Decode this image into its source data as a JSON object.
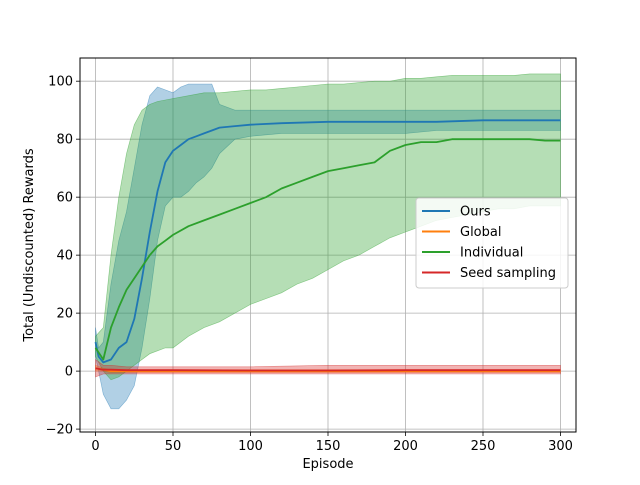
{
  "chart_data": {
    "type": "line",
    "title": "",
    "xlabel": "Episode",
    "ylabel": "Total (Undiscounted) Rewards",
    "xlim": [
      -10,
      310
    ],
    "ylim": [
      -21,
      108
    ],
    "xticks": [
      0,
      50,
      100,
      150,
      200,
      250,
      300
    ],
    "xtick_labels": [
      "0",
      "50",
      "100",
      "150",
      "200",
      "250",
      "300"
    ],
    "yticks": [
      -20,
      0,
      20,
      40,
      60,
      80,
      100
    ],
    "ytick_labels": [
      "−20",
      "0",
      "20",
      "40",
      "60",
      "80",
      "100"
    ],
    "grid": true,
    "legend_position": "center-right",
    "series": [
      {
        "name": "Ours",
        "color": "#1f77b4",
        "x": [
          0,
          2,
          5,
          10,
          15,
          20,
          25,
          30,
          35,
          40,
          45,
          50,
          55,
          60,
          65,
          70,
          75,
          80,
          90,
          100,
          120,
          150,
          180,
          200,
          220,
          250,
          280,
          300
        ],
        "mean": [
          10,
          5,
          3,
          4,
          8,
          10,
          18,
          32,
          48,
          62,
          72,
          76,
          78,
          80,
          81,
          82,
          83,
          84,
          84.5,
          85,
          85.5,
          86,
          86,
          86,
          86,
          86.5,
          86.5,
          86.5
        ],
        "upper": [
          15,
          8,
          10,
          30,
          45,
          55,
          70,
          85,
          95,
          98,
          97,
          96,
          98,
          99,
          99,
          99,
          99,
          92,
          90,
          90,
          90,
          90,
          90,
          90,
          90,
          90,
          90,
          90
        ],
        "lower": [
          5,
          0,
          -8,
          -13,
          -13,
          -10,
          -5,
          8,
          25,
          45,
          57,
          60,
          60,
          62,
          65,
          67,
          70,
          75,
          80,
          81,
          82,
          82,
          82,
          82,
          83,
          83,
          83,
          83
        ]
      },
      {
        "name": "Global",
        "color": "#ff7f0e",
        "x": [
          0,
          5,
          10,
          20,
          50,
          100,
          150,
          200,
          250,
          300
        ],
        "mean": [
          1,
          0.5,
          0,
          0,
          0,
          0,
          0,
          0,
          0,
          0
        ],
        "upper": [
          2,
          1,
          0.5,
          0.5,
          0.5,
          0.5,
          0.5,
          0.5,
          0.5,
          0.5
        ],
        "lower": [
          0,
          0,
          -0.5,
          -0.5,
          -0.5,
          -0.5,
          -0.5,
          -0.5,
          -0.5,
          -0.5
        ]
      },
      {
        "name": "Individual",
        "color": "#2ca02c",
        "x": [
          0,
          5,
          10,
          15,
          20,
          25,
          30,
          35,
          40,
          45,
          50,
          60,
          70,
          80,
          90,
          100,
          110,
          120,
          130,
          140,
          150,
          160,
          170,
          180,
          190,
          200,
          210,
          220,
          230,
          240,
          250,
          260,
          270,
          280,
          290,
          300
        ],
        "mean": [
          8,
          4,
          15,
          22,
          28,
          32,
          36,
          40,
          43,
          45,
          47,
          50,
          52,
          54,
          56,
          58,
          60,
          63,
          65,
          67,
          69,
          70,
          71,
          72,
          76,
          78,
          79,
          79,
          80,
          80,
          80,
          80,
          80,
          80,
          79.5,
          79.5
        ],
        "upper": [
          12,
          15,
          40,
          60,
          75,
          85,
          90,
          92,
          93,
          93.5,
          94,
          95,
          96,
          96,
          96.5,
          97,
          97,
          97.5,
          98,
          98.5,
          99,
          99,
          99.5,
          100,
          100,
          101,
          101,
          101.5,
          102,
          102,
          102,
          102,
          102,
          102.5,
          102.5,
          102.5
        ],
        "lower": [
          5,
          0,
          -3,
          -2,
          0,
          2,
          4,
          6,
          7,
          8,
          8,
          12,
          15,
          17,
          20,
          23,
          25,
          27,
          30,
          32,
          35,
          38,
          40,
          43,
          46,
          48,
          50,
          52,
          53,
          54,
          55,
          56,
          56,
          57,
          57,
          57
        ]
      },
      {
        "name": "Seed sampling",
        "color": "#d62728",
        "x": [
          0,
          5,
          10,
          20,
          50,
          100,
          150,
          200,
          250,
          300
        ],
        "mean": [
          1,
          0.5,
          0.5,
          0.3,
          0.3,
          0.2,
          0.2,
          0.3,
          0.3,
          0.3
        ],
        "upper": [
          4,
          2,
          2,
          1.5,
          1.5,
          1.5,
          2,
          2,
          2,
          2
        ],
        "lower": [
          -2,
          -1,
          -1,
          -1,
          -1,
          -1,
          -1,
          -1,
          -1,
          -1
        ]
      }
    ]
  }
}
